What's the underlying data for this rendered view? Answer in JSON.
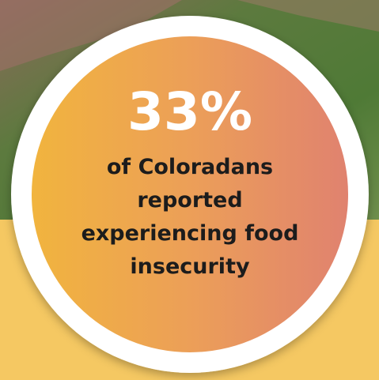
{
  "stat": "33%",
  "caption": [
    "of Coloradans",
    "reported",
    "experiencing food",
    "insecurity"
  ]
}
